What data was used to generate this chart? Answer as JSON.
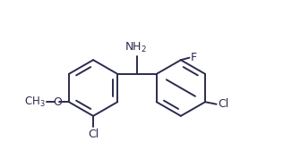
{
  "bg": "#ffffff",
  "lc": "#2b2b4e",
  "lw": 1.4,
  "fig_w": 3.26,
  "fig_h": 1.77,
  "dpi": 100,
  "xlim": [
    -5.8,
    5.8
  ],
  "ylim": [
    -4.2,
    2.8
  ],
  "r": 1.25,
  "lcx": -2.35,
  "lcy": -1.1,
  "rcx": 1.55,
  "rcy": -1.1,
  "rot": 0,
  "nh2_fontsize": 9,
  "sub_fontsize": 9,
  "ch3_fontsize": 8.5
}
